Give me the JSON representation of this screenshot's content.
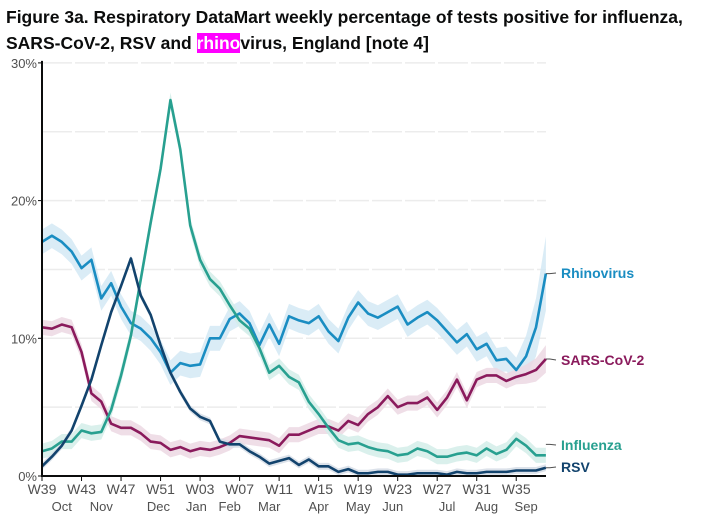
{
  "title": {
    "line1": "Figure 3a. Respiratory DataMart weekly percentage of tests positive for influenza,",
    "line2_pre": "SARS-CoV-2, RSV and ",
    "line2_highlight": "rhino",
    "line2_post": "virus, England [note 4]"
  },
  "colors": {
    "highlight": "#ff00ff"
  },
  "chart_data": {
    "type": "line",
    "title": "Figure 3a. Respiratory DataMart weekly percentage of tests positive for influenza, SARS-CoV-2, RSV and rhinovirus, England [note 4]",
    "xlabel": "",
    "ylabel": "",
    "ylim": [
      0,
      30
    ],
    "y_ticks": [
      {
        "value": 0,
        "label": "0%"
      },
      {
        "value": 10,
        "label": "10%"
      },
      {
        "value": 20,
        "label": "20%"
      },
      {
        "value": 30,
        "label": "30%"
      }
    ],
    "gridlines": [
      5,
      10,
      15,
      20,
      25,
      30
    ],
    "x_ticks": [
      {
        "index": 0,
        "label": "W39"
      },
      {
        "index": 4,
        "label": "W43"
      },
      {
        "index": 8,
        "label": "W47"
      },
      {
        "index": 12,
        "label": "W51"
      },
      {
        "index": 16,
        "label": "W03"
      },
      {
        "index": 20,
        "label": "W07"
      },
      {
        "index": 24,
        "label": "W11"
      },
      {
        "index": 28,
        "label": "W15"
      },
      {
        "index": 32,
        "label": "W19"
      },
      {
        "index": 36,
        "label": "W23"
      },
      {
        "index": 40,
        "label": "W27"
      },
      {
        "index": 44,
        "label": "W31"
      },
      {
        "index": 48,
        "label": "W35"
      }
    ],
    "month_labels": [
      {
        "index": 2,
        "label": "Oct"
      },
      {
        "index": 6,
        "label": "Nov"
      },
      {
        "index": 13.4,
        "label": "Dec"
      },
      {
        "index": 13.8,
        "label": "Jan"
      },
      {
        "index": 19,
        "label": "Feb"
      },
      {
        "index": 23,
        "label": "Mar"
      },
      {
        "index": 28,
        "label": "Apr"
      },
      {
        "index": 32,
        "label": "May"
      },
      {
        "index": 35.5,
        "label": "Jun"
      },
      {
        "index": 41,
        "label": "Jul"
      },
      {
        "index": 45,
        "label": "Aug"
      },
      {
        "index": 49,
        "label": "Sep"
      }
    ],
    "series": [
      {
        "name": "Rhinovirus",
        "color": "#1a8dc2",
        "band": "#d4e9f5",
        "values": [
          17.0,
          17.45,
          17.0,
          16.3,
          15.1,
          15.7,
          12.9,
          14.0,
          12.3,
          11.1,
          10.7,
          10.0,
          9.0,
          7.5,
          8.2,
          8.0,
          8.1,
          10.0,
          10.0,
          11.4,
          11.8,
          11.1,
          9.5,
          11.0,
          9.6,
          11.6,
          11.3,
          11.1,
          11.6,
          10.5,
          9.8,
          11.5,
          12.6,
          11.8,
          11.5,
          11.9,
          12.3,
          11.0,
          11.5,
          11.9,
          11.3,
          10.5,
          9.7,
          10.3,
          9.2,
          9.6,
          8.4,
          8.5,
          7.7,
          8.7,
          10.8,
          14.7
        ]
      },
      {
        "name": "SARS-CoV-2",
        "color": "#8a1a5c",
        "band": "#ecd8e3",
        "values": [
          10.8,
          10.7,
          11.0,
          10.8,
          9.0,
          6.0,
          5.4,
          3.8,
          3.5,
          3.5,
          3.1,
          2.5,
          2.4,
          1.9,
          2.1,
          1.8,
          2.0,
          1.9,
          2.1,
          2.4,
          2.9,
          2.8,
          2.7,
          2.6,
          2.2,
          3.0,
          3.0,
          3.3,
          3.6,
          3.6,
          3.3,
          4.0,
          3.7,
          4.5,
          5.0,
          5.8,
          5.0,
          5.3,
          5.3,
          5.7,
          4.8,
          5.7,
          7.0,
          5.5,
          7.0,
          7.3,
          7.3,
          6.9,
          7.2,
          7.4,
          7.7,
          8.5
        ]
      },
      {
        "name": "Influenza",
        "color": "#28a090",
        "band": "#d3ede9",
        "values": [
          1.8,
          2.0,
          2.5,
          2.5,
          3.3,
          3.1,
          3.2,
          4.8,
          7.3,
          10.2,
          14.3,
          18.4,
          22.3,
          27.3,
          23.7,
          18.2,
          15.7,
          14.3,
          13.6,
          12.4,
          11.3,
          10.7,
          9.3,
          7.5,
          8.0,
          7.2,
          6.8,
          5.4,
          4.5,
          3.5,
          2.6,
          2.3,
          2.4,
          2.1,
          1.9,
          1.8,
          1.5,
          1.6,
          2.0,
          1.8,
          1.4,
          1.4,
          1.6,
          1.7,
          1.5,
          2.0,
          1.6,
          1.9,
          2.7,
          2.2,
          1.5,
          1.5
        ]
      },
      {
        "name": "RSV",
        "color": "#12436d",
        "band": "#d6dde6",
        "values": [
          0.7,
          1.4,
          2.2,
          3.3,
          5.1,
          7.0,
          9.5,
          11.9,
          13.8,
          15.8,
          13.1,
          11.7,
          9.5,
          7.5,
          6.1,
          4.9,
          4.3,
          4.0,
          2.5,
          2.3,
          2.3,
          1.8,
          1.4,
          0.9,
          1.1,
          1.3,
          0.8,
          1.2,
          0.7,
          0.7,
          0.3,
          0.5,
          0.2,
          0.2,
          0.3,
          0.3,
          0.1,
          0.1,
          0.2,
          0.2,
          0.2,
          0.1,
          0.3,
          0.2,
          0.2,
          0.3,
          0.3,
          0.3,
          0.4,
          0.4,
          0.4,
          0.6
        ]
      }
    ],
    "end_labels": [
      {
        "series": "Rhinovirus",
        "label": "Rhinovirus",
        "label_value": 14.7
      },
      {
        "series": "SARS-CoV-2",
        "label": "SARS-CoV-2",
        "label_value": 8.5
      },
      {
        "series": "Influenza",
        "label": "Influenza",
        "label_value": 2.3
      },
      {
        "series": "RSV",
        "label": "RSV",
        "label_value": 0.6
      }
    ]
  }
}
